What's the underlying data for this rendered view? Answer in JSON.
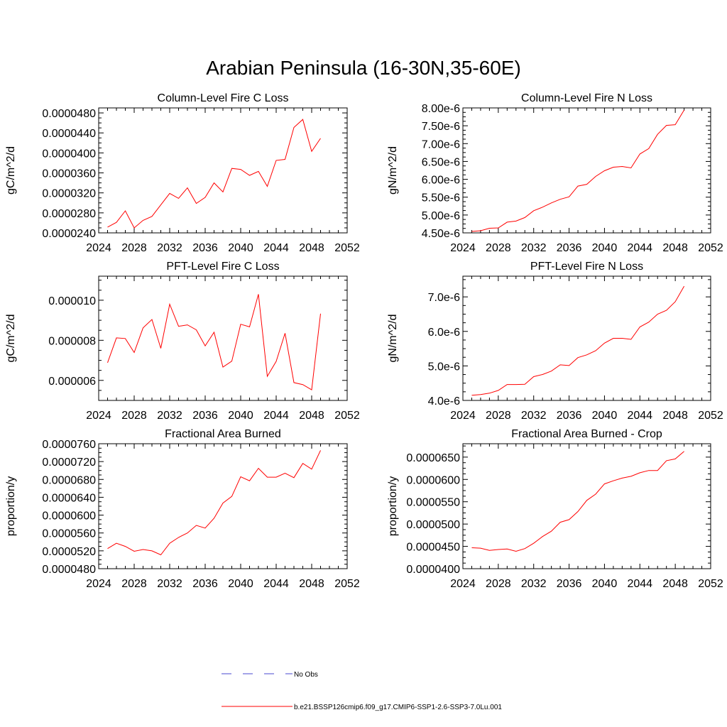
{
  "title": "Arabian Peninsula (16-30N,35-60E)",
  "colors": {
    "model_line": "#ff0000",
    "obs_line": "#4a4ad0",
    "axis": "#000000"
  },
  "legend": {
    "entries": [
      {
        "label": "No Obs",
        "style": "dashed",
        "color": "#4a4ad0"
      },
      {
        "label": "b.e21.BSSP126cmip6.f09_g17.CMIP6-SSP1-2.6-SSP3-7.0Lu.001",
        "style": "solid",
        "color": "#ff0000"
      }
    ]
  },
  "chart_data": [
    {
      "type": "line",
      "title": "Column-Level Fire C Loss",
      "ylabel": "gC/m^2/d",
      "xlim": [
        2024,
        2052
      ],
      "ylim": [
        2.4e-05,
        4.9e-05
      ],
      "x_ticks": [
        "2024",
        "2028",
        "2032",
        "2036",
        "2040",
        "2044",
        "2048",
        "2052"
      ],
      "y_ticks": [
        {
          "v": 2.4e-05,
          "label": "0.0000240"
        },
        {
          "v": 2.8e-05,
          "label": "0.0000280"
        },
        {
          "v": 3.2e-05,
          "label": "0.0000320"
        },
        {
          "v": 3.6e-05,
          "label": "0.0000360"
        },
        {
          "v": 4e-05,
          "label": "0.0000400"
        },
        {
          "v": 4.4e-05,
          "label": "0.0000440"
        },
        {
          "v": 4.8e-05,
          "label": "0.0000480"
        }
      ],
      "x": [
        2025,
        2026,
        2027,
        2028,
        2029,
        2030,
        2031,
        2032,
        2033,
        2034,
        2035,
        2036,
        2037,
        2038,
        2039,
        2040,
        2041,
        2042,
        2043,
        2044,
        2045,
        2046,
        2047,
        2048,
        2049
      ],
      "series": [
        {
          "values": [
            2.515e-05,
            2.61e-05,
            2.84e-05,
            2.5e-05,
            2.65e-05,
            2.73e-05,
            2.96e-05,
            3.19e-05,
            3.09e-05,
            3.3e-05,
            2.99e-05,
            3.11e-05,
            3.4e-05,
            3.22e-05,
            3.69e-05,
            3.67e-05,
            3.55e-05,
            3.63e-05,
            3.33e-05,
            3.85e-05,
            3.87e-05,
            4.51e-05,
            4.67e-05,
            4.03e-05,
            4.29e-05
          ]
        }
      ]
    },
    {
      "type": "line",
      "title": "Column-Level Fire N Loss",
      "ylabel": "gN/m^2/d",
      "xlim": [
        2024,
        2052
      ],
      "ylim": [
        4.5e-06,
        8e-06
      ],
      "x_ticks": [
        "2024",
        "2028",
        "2032",
        "2036",
        "2040",
        "2044",
        "2048",
        "2052"
      ],
      "y_ticks": [
        {
          "v": 4.5e-06,
          "label": "4.50e-6"
        },
        {
          "v": 5e-06,
          "label": "5.00e-6"
        },
        {
          "v": 5.5e-06,
          "label": "5.50e-6"
        },
        {
          "v": 6e-06,
          "label": "6.00e-6"
        },
        {
          "v": 6.5e-06,
          "label": "6.50e-6"
        },
        {
          "v": 7e-06,
          "label": "7.00e-6"
        },
        {
          "v": 7.5e-06,
          "label": "7.50e-6"
        },
        {
          "v": 8e-06,
          "label": "8.00e-6"
        }
      ],
      "x": [
        2025,
        2026,
        2027,
        2028,
        2029,
        2030,
        2031,
        2032,
        2033,
        2034,
        2035,
        2036,
        2037,
        2038,
        2039,
        2040,
        2041,
        2042,
        2043,
        2044,
        2045,
        2046,
        2047,
        2048,
        2049
      ],
      "series": [
        {
          "values": [
            4.54e-06,
            4.56e-06,
            4.63e-06,
            4.64e-06,
            4.8e-06,
            4.83e-06,
            4.93e-06,
            5.12e-06,
            5.22e-06,
            5.34e-06,
            5.44e-06,
            5.51e-06,
            5.81e-06,
            5.86e-06,
            6.08e-06,
            6.24e-06,
            6.34e-06,
            6.36e-06,
            6.32e-06,
            6.71e-06,
            6.86e-06,
            7.26e-06,
            7.51e-06,
            7.53e-06,
            7.94e-06
          ]
        }
      ]
    },
    {
      "type": "line",
      "title": "PFT-Level Fire C Loss",
      "ylabel": "gC/m^2/d",
      "xlim": [
        2024,
        2052
      ],
      "ylim": [
        5e-06,
        1.12e-05
      ],
      "x_ticks": [
        "2024",
        "2028",
        "2032",
        "2036",
        "2040",
        "2044",
        "2048",
        "2052"
      ],
      "y_ticks": [
        {
          "v": 6e-06,
          "label": "0.000006"
        },
        {
          "v": 8e-06,
          "label": "0.000008"
        },
        {
          "v": 1e-05,
          "label": "0.000010"
        }
      ],
      "x": [
        2025,
        2026,
        2027,
        2028,
        2029,
        2030,
        2031,
        2032,
        2033,
        2034,
        2035,
        2036,
        2037,
        2038,
        2039,
        2040,
        2041,
        2042,
        2043,
        2044,
        2045,
        2046,
        2047,
        2048,
        2049
      ],
      "series": [
        {
          "values": [
            6.88e-06,
            8.12e-06,
            8.09e-06,
            7.39e-06,
            8.62e-06,
            9.04e-06,
            7.6e-06,
            9.8e-06,
            8.7e-06,
            8.77e-06,
            8.52e-06,
            7.72e-06,
            8.4e-06,
            6.66e-06,
            6.96e-06,
            8.8e-06,
            8.67e-06,
            1.03e-05,
            6.2e-06,
            6.95e-06,
            8.35e-06,
            5.89e-06,
            5.79e-06,
            5.53e-06,
            9.33e-06
          ]
        }
      ]
    },
    {
      "type": "line",
      "title": "PFT-Level Fire N Loss",
      "ylabel": "gN/m^2/d",
      "xlim": [
        2024,
        2052
      ],
      "ylim": [
        4e-06,
        7.6e-06
      ],
      "x_ticks": [
        "2024",
        "2028",
        "2032",
        "2036",
        "2040",
        "2044",
        "2048",
        "2052"
      ],
      "y_ticks": [
        {
          "v": 4e-06,
          "label": "4.0e-6"
        },
        {
          "v": 5e-06,
          "label": "5.0e-6"
        },
        {
          "v": 6e-06,
          "label": "6.0e-6"
        },
        {
          "v": 7e-06,
          "label": "7.0e-6"
        }
      ],
      "x": [
        2025,
        2026,
        2027,
        2028,
        2029,
        2030,
        2031,
        2032,
        2033,
        2034,
        2035,
        2036,
        2037,
        2038,
        2039,
        2040,
        2041,
        2042,
        2043,
        2044,
        2045,
        2046,
        2047,
        2048,
        2049
      ],
      "series": [
        {
          "values": [
            4.15e-06,
            4.17e-06,
            4.21e-06,
            4.29e-06,
            4.46e-06,
            4.46e-06,
            4.47e-06,
            4.69e-06,
            4.75e-06,
            4.85e-06,
            5.03e-06,
            5.01e-06,
            5.24e-06,
            5.32e-06,
            5.44e-06,
            5.66e-06,
            5.8e-06,
            5.8e-06,
            5.77e-06,
            6.13e-06,
            6.27e-06,
            6.5e-06,
            6.61e-06,
            6.86e-06,
            7.31e-06
          ]
        }
      ]
    },
    {
      "type": "line",
      "title": "Fractional Area Burned",
      "ylabel": "proportion/y",
      "xlim": [
        2024,
        2052
      ],
      "ylim": [
        4.8e-05,
        7.6e-05
      ],
      "x_ticks": [
        "2024",
        "2028",
        "2032",
        "2036",
        "2040",
        "2044",
        "2048",
        "2052"
      ],
      "y_ticks": [
        {
          "v": 4.8e-05,
          "label": "0.0000480"
        },
        {
          "v": 5.2e-05,
          "label": "0.0000520"
        },
        {
          "v": 5.6e-05,
          "label": "0.0000560"
        },
        {
          "v": 6e-05,
          "label": "0.0000600"
        },
        {
          "v": 6.4e-05,
          "label": "0.0000640"
        },
        {
          "v": 6.8e-05,
          "label": "0.0000680"
        },
        {
          "v": 7.2e-05,
          "label": "0.0000720"
        },
        {
          "v": 7.6e-05,
          "label": "0.0000760"
        }
      ],
      "x": [
        2025,
        2026,
        2027,
        2028,
        2029,
        2030,
        2031,
        2032,
        2033,
        2034,
        2035,
        2036,
        2037,
        2038,
        2039,
        2040,
        2041,
        2042,
        2043,
        2044,
        2045,
        2046,
        2047,
        2048,
        2049
      ],
      "series": [
        {
          "values": [
            5.25e-05,
            5.37e-05,
            5.3e-05,
            5.19e-05,
            5.23e-05,
            5.2e-05,
            5.11e-05,
            5.37e-05,
            5.5e-05,
            5.6e-05,
            5.77e-05,
            5.71e-05,
            5.93e-05,
            6.27e-05,
            6.42e-05,
            6.86e-05,
            6.77e-05,
            7.05e-05,
            6.85e-05,
            6.85e-05,
            6.94e-05,
            6.84e-05,
            7.16e-05,
            7.03e-05,
            7.45e-05
          ]
        }
      ]
    },
    {
      "type": "line",
      "title": "Fractional Area Burned - Crop",
      "ylabel": "proportion/y",
      "xlim": [
        2024,
        2052
      ],
      "ylim": [
        4e-05,
        6.8e-05
      ],
      "x_ticks": [
        "2024",
        "2028",
        "2032",
        "2036",
        "2040",
        "2044",
        "2048",
        "2052"
      ],
      "y_ticks": [
        {
          "v": 4e-05,
          "label": "0.0000400"
        },
        {
          "v": 4.5e-05,
          "label": "0.0000450"
        },
        {
          "v": 5e-05,
          "label": "0.0000500"
        },
        {
          "v": 5.5e-05,
          "label": "0.0000550"
        },
        {
          "v": 6e-05,
          "label": "0.0000600"
        },
        {
          "v": 6.5e-05,
          "label": "0.0000650"
        }
      ],
      "x": [
        2025,
        2026,
        2027,
        2028,
        2029,
        2030,
        2031,
        2032,
        2033,
        2034,
        2035,
        2036,
        2037,
        2038,
        2039,
        2040,
        2041,
        2042,
        2043,
        2044,
        2045,
        2046,
        2047,
        2048,
        2049
      ],
      "series": [
        {
          "values": [
            4.47e-05,
            4.46e-05,
            4.41e-05,
            4.43e-05,
            4.44e-05,
            4.39e-05,
            4.45e-05,
            4.57e-05,
            4.72e-05,
            4.84e-05,
            5.04e-05,
            5.1e-05,
            5.28e-05,
            5.53e-05,
            5.67e-05,
            5.9e-05,
            5.97e-05,
            6.03e-05,
            6.07e-05,
            6.15e-05,
            6.2e-05,
            6.2e-05,
            6.42e-05,
            6.46e-05,
            6.63e-05
          ]
        }
      ]
    }
  ]
}
